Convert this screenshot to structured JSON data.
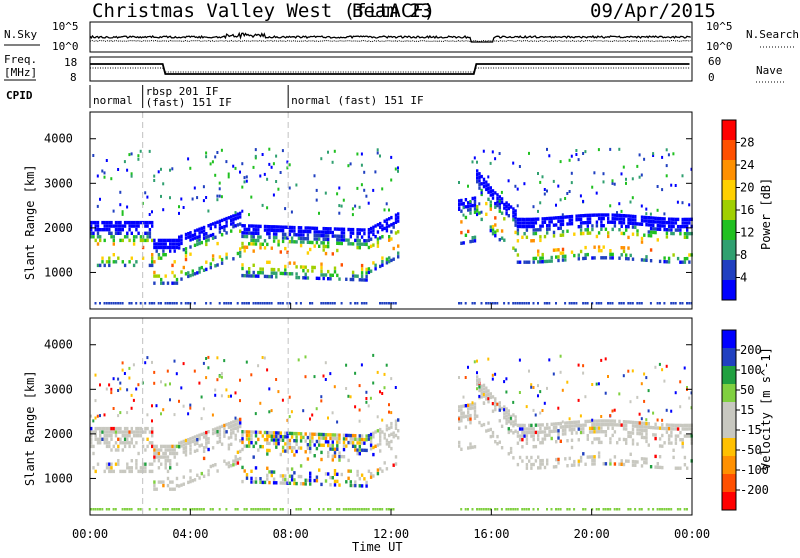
{
  "header": {
    "title": "Christmas Valley West (fitACF)",
    "beam": "Beam 23",
    "date": "09/Apr/2015"
  },
  "params": {
    "nsky_label": "N.Sky",
    "nsearch_label": "N.Search",
    "nsky_ticks": [
      "10^5",
      "10^0"
    ],
    "nsearch_ticks": [
      "10^5",
      "10^0"
    ],
    "freq_label_line1": "Freq.",
    "freq_label_line2": "[MHz]",
    "freq_ticks": [
      "18",
      "8"
    ],
    "nave_label": "Nave",
    "nave_ticks": [
      "60",
      "0"
    ],
    "cpid_label": "CPID",
    "cpid_segments": [
      {
        "label": "normal",
        "start": 0.0,
        "end": 2.1
      },
      {
        "label": "rbsp 201 IF",
        "start": 2.1,
        "end": 7.9,
        "sublabel": "(fast) 151 IF"
      },
      {
        "label": "normal (fast) 151 IF",
        "start": 7.9,
        "end": 24.0
      }
    ]
  },
  "colors": {
    "power_scale": [
      "#0000ff",
      "#2040c0",
      "#30a070",
      "#20c020",
      "#a0d000",
      "#ffd000",
      "#ff9000",
      "#ff5000",
      "#ff0000"
    ],
    "velocity_scale": [
      "#ff0000",
      "#ff5000",
      "#ff9000",
      "#ffc000",
      "#c8c8c0",
      "#c8c8c0",
      "#80d040",
      "#20a040",
      "#2040c0",
      "#0000ff"
    ],
    "ground_scatter": "#c8c8c0"
  },
  "chart_data": [
    {
      "type": "heatmap",
      "name": "power",
      "ylabel": "Slant Range [km]",
      "xlabel": "Time UT",
      "colorbar_label": "Power [dB]",
      "colorbar_ticks": [
        "28",
        "24",
        "20",
        "16",
        "12",
        "8",
        "4"
      ],
      "xlim": [
        0,
        24
      ],
      "ylim": [
        180,
        4600
      ],
      "yticks": [
        1000,
        2000,
        3000,
        4000
      ],
      "xticks": [
        "00:00",
        "04:00",
        "08:00",
        "12:00",
        "16:00",
        "20:00",
        "00:00"
      ]
    },
    {
      "type": "heatmap",
      "name": "velocity",
      "ylabel": "Slant Range [km]",
      "xlabel": "Time UT",
      "colorbar_label": "Velocity [m s^-1]",
      "colorbar_ticks": [
        "200",
        "100",
        "50",
        "15",
        "-15",
        "-50",
        "-100",
        "-200"
      ],
      "xlim": [
        0,
        24
      ],
      "ylim": [
        180,
        4600
      ],
      "yticks": [
        1000,
        2000,
        3000,
        4000
      ],
      "xticks": [
        "00:00",
        "04:00",
        "08:00",
        "12:00",
        "16:00",
        "20:00",
        "00:00"
      ]
    }
  ]
}
